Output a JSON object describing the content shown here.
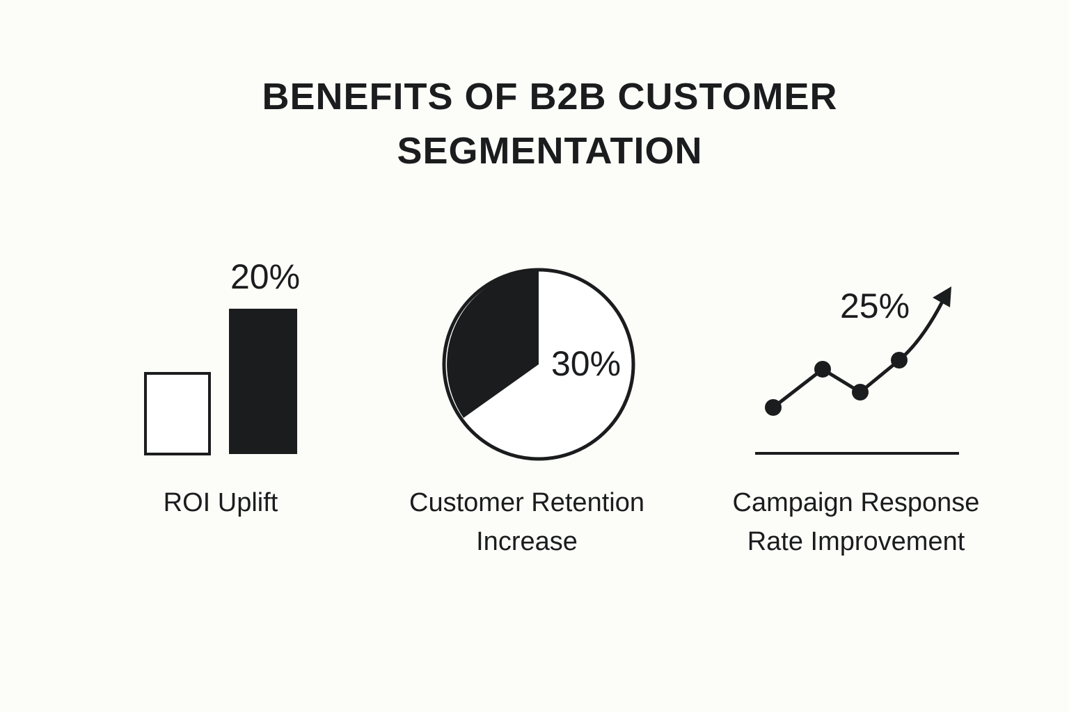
{
  "title": "BENEFITS OF B2B CUSTOMER SEGMENTATION",
  "items": [
    {
      "value": "20%",
      "label": "ROI Uplift"
    },
    {
      "value": "30%",
      "label": "Customer Retention Increase"
    },
    {
      "value": "25%",
      "label": "Campaign Response Rate Improvement"
    }
  ]
}
